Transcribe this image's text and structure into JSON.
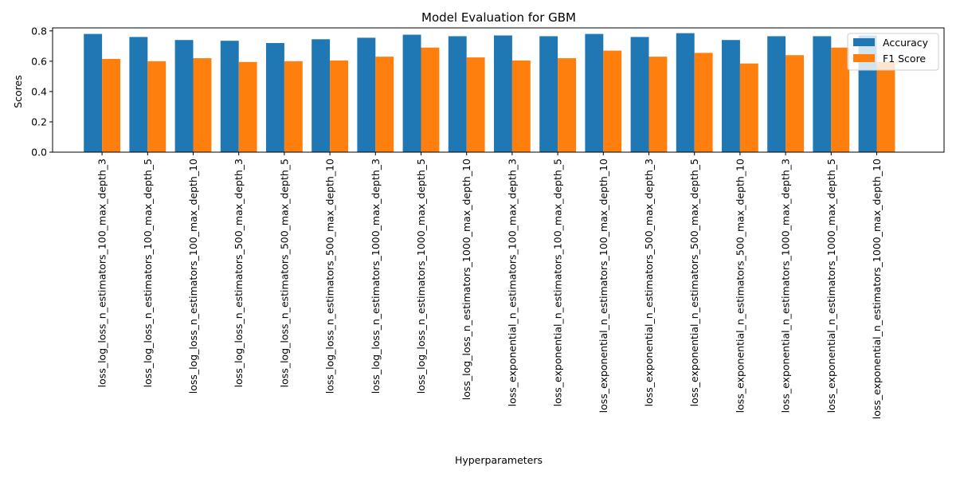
{
  "chart_data": {
    "type": "bar",
    "title": "Model Evaluation for GBM",
    "xlabel": "Hyperparameters",
    "ylabel": "Scores",
    "ylim": [
      0,
      0.82
    ],
    "yticks": [
      "0.0",
      "0.2",
      "0.4",
      "0.6",
      "0.8"
    ],
    "grid": false,
    "legend_position": "top-right",
    "categories": [
      "loss_log_loss_n_estimators_100_max_depth_3",
      "loss_log_loss_n_estimators_100_max_depth_5",
      "loss_log_loss_n_estimators_100_max_depth_10",
      "loss_log_loss_n_estimators_500_max_depth_3",
      "loss_log_loss_n_estimators_500_max_depth_5",
      "loss_log_loss_n_estimators_500_max_depth_10",
      "loss_log_loss_n_estimators_1000_max_depth_3",
      "loss_log_loss_n_estimators_1000_max_depth_5",
      "loss_log_loss_n_estimators_1000_max_depth_10",
      "loss_exponential_n_estimators_100_max_depth_3",
      "loss_exponential_n_estimators_100_max_depth_5",
      "loss_exponential_n_estimators_100_max_depth_10",
      "loss_exponential_n_estimators_500_max_depth_3",
      "loss_exponential_n_estimators_500_max_depth_5",
      "loss_exponential_n_estimators_500_max_depth_10",
      "loss_exponential_n_estimators_1000_max_depth_3",
      "loss_exponential_n_estimators_1000_max_depth_5",
      "loss_exponential_n_estimators_1000_max_depth_10"
    ],
    "series": [
      {
        "name": "Accuracy",
        "color": "#1f77b4",
        "values": [
          0.78,
          0.76,
          0.74,
          0.735,
          0.72,
          0.745,
          0.755,
          0.775,
          0.765,
          0.77,
          0.765,
          0.78,
          0.76,
          0.785,
          0.74,
          0.765,
          0.765,
          0.77
        ]
      },
      {
        "name": "F1 Score",
        "color": "#ff7f0e",
        "values": [
          0.615,
          0.6,
          0.62,
          0.595,
          0.6,
          0.605,
          0.63,
          0.69,
          0.625,
          0.605,
          0.62,
          0.67,
          0.63,
          0.655,
          0.585,
          0.64,
          0.69,
          0.595
        ]
      }
    ]
  }
}
